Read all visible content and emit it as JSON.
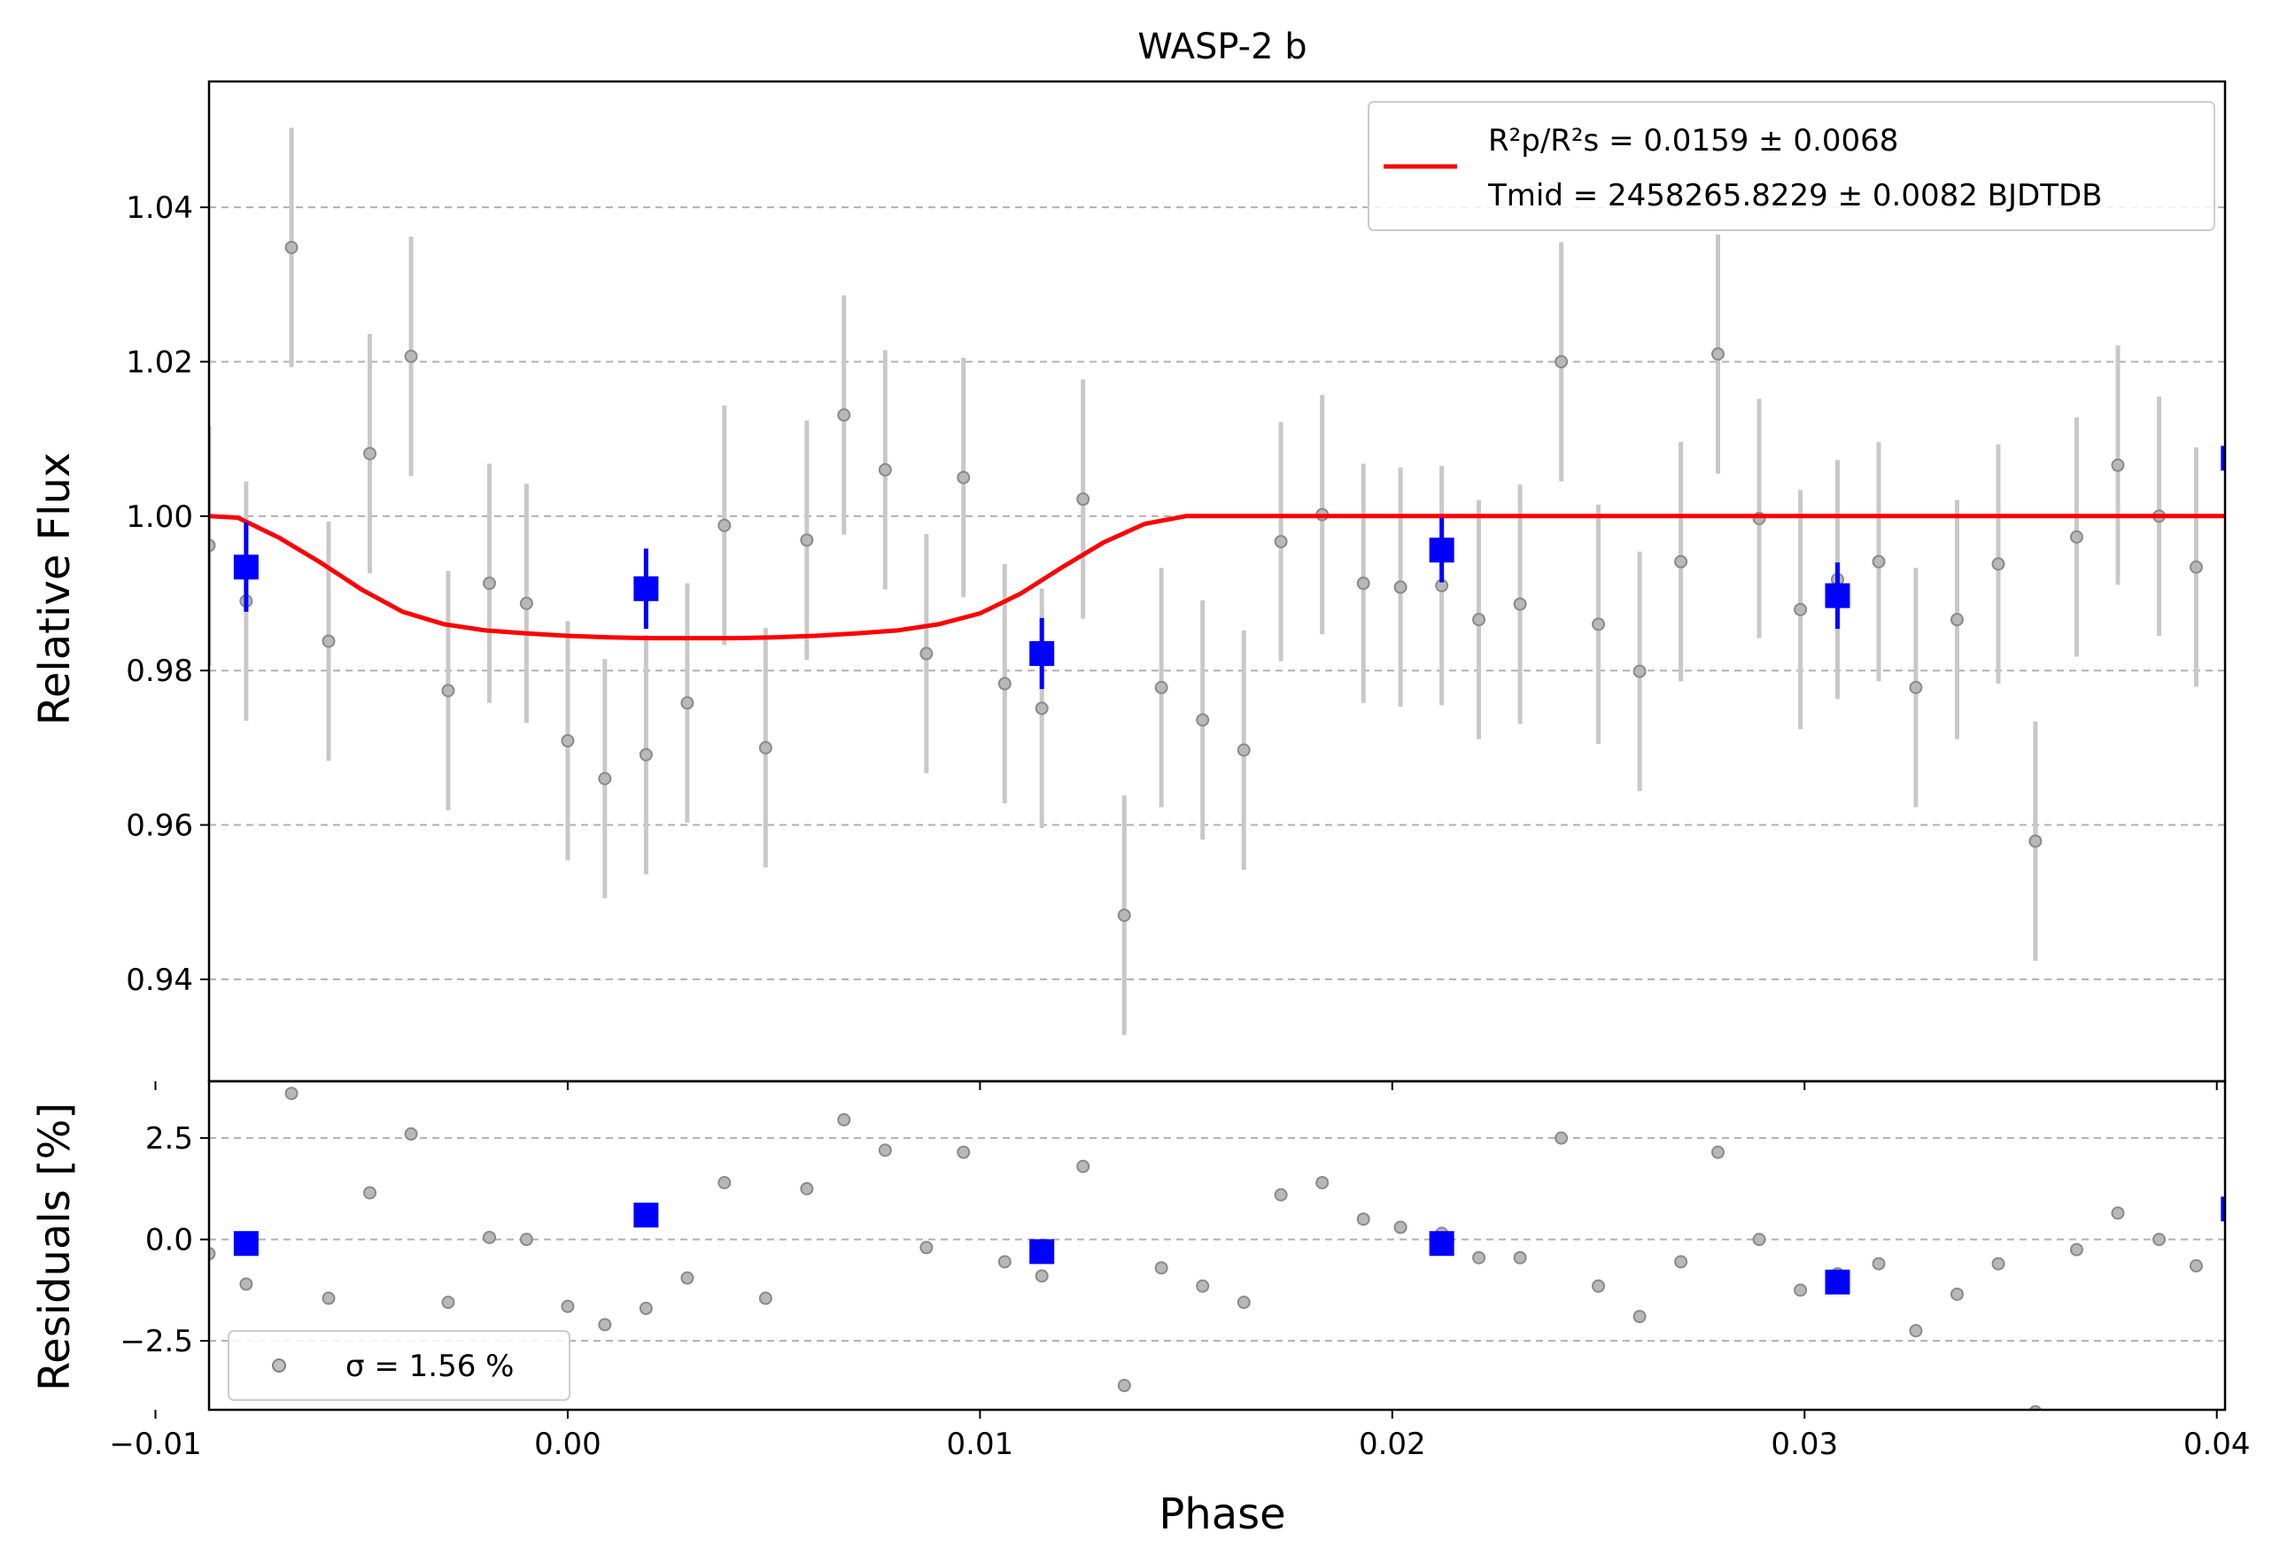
{
  "chart_data": [
    {
      "type": "scatter",
      "title": "WASP-2 b",
      "xlabel": "",
      "ylabel": "Relative Flux",
      "xlim": [
        -0.0087,
        0.0402
      ],
      "ylim": [
        0.9268,
        1.0563
      ],
      "yticks": [
        0.94,
        0.96,
        0.98,
        1.0,
        1.02,
        1.04
      ],
      "yticklabels": [
        "0.94",
        "0.96",
        "0.98",
        "1.00",
        "1.02",
        "1.04"
      ],
      "grid": "horizontal dashed",
      "legend_position": "top-right",
      "legend": {
        "line1": "R²p/R²s = 0.0159 ± 0.0068",
        "line2": "Tmid = 2458265.8229 ± 0.0082 BJDTDB"
      },
      "series": [
        {
          "kind": "raw",
          "color": "#808080",
          "x": [
            -0.0087,
            -0.0078,
            -0.0067,
            -0.0058,
            -0.0048,
            -0.0038,
            -0.0029,
            -0.0019,
            -0.001,
            0.0,
            0.0009,
            0.0019,
            0.0029,
            0.0038,
            0.0048,
            0.0058,
            0.0067,
            0.0077,
            0.0087,
            0.0096,
            0.0106,
            0.0115,
            0.0125,
            0.0135,
            0.0144,
            0.0154,
            0.0164,
            0.0173,
            0.0183,
            0.0193,
            0.0202,
            0.0212,
            0.0221,
            0.0231,
            0.0241,
            0.025,
            0.026,
            0.027,
            0.0279,
            0.0289,
            0.0299,
            0.0308,
            0.0318,
            0.0327,
            0.0337,
            0.0347,
            0.0356,
            0.0366,
            0.0376,
            0.0386,
            0.0395,
            0.0405
          ],
          "y": [
            0.9962,
            0.989,
            1.0348,
            0.9838,
            1.0081,
            1.0207,
            0.9774,
            0.9913,
            0.9887,
            0.9709,
            0.966,
            0.9691,
            0.9758,
            0.9988,
            0.97,
            0.9969,
            1.0131,
            1.006,
            0.9822,
            1.005,
            0.9783,
            0.9751,
            1.0022,
            0.9483,
            0.9778,
            0.9736,
            0.9697,
            0.9967,
            1.0002,
            0.9913,
            0.9908,
            0.991,
            0.9866,
            0.9886,
            1.02,
            0.986,
            0.9799,
            0.9941,
            1.021,
            0.9997,
            0.9879,
            0.9918,
            0.9941,
            0.9778,
            0.9866,
            0.9938,
            0.9579,
            0.9973,
            1.0066,
            1.0,
            0.9934,
            1.0098
          ],
          "yerr": 0.0155,
          "residuals": [
            -0.35,
            -1.1,
            3.6,
            -1.45,
            1.15,
            2.6,
            -1.55,
            0.05,
            0.0,
            -1.65,
            -2.1,
            -1.7,
            -0.95,
            1.4,
            -1.45,
            1.25,
            2.95,
            2.2,
            -0.2,
            2.15,
            -0.55,
            -0.9,
            1.8,
            -3.6,
            -0.7,
            -1.15,
            -1.55,
            1.1,
            1.4,
            0.5,
            0.3,
            0.15,
            -0.45,
            -0.45,
            2.5,
            -1.15,
            -1.9,
            -0.55,
            2.15,
            0.0,
            -1.25,
            -0.85,
            -0.6,
            -2.25,
            -1.35,
            -0.6,
            -4.25,
            -0.25,
            0.65,
            0.0,
            -0.65,
            1.0
          ]
        },
        {
          "kind": "binned",
          "color": "#0000ff",
          "x": [
            -0.0078,
            0.0019,
            0.0115,
            0.0212,
            0.0308,
            0.0404
          ],
          "y": [
            0.9934,
            0.9906,
            0.9822,
            0.9956,
            0.9897,
            1.0075
          ],
          "yerr": [
            0.0058,
            0.0052,
            0.0046,
            0.0042,
            0.0043,
            0.0022
          ],
          "residuals": [
            -0.1,
            0.6,
            -0.3,
            -0.1,
            -1.05,
            0.75
          ]
        },
        {
          "kind": "model",
          "color": "#ff0000",
          "x": [
            -0.0087,
            -0.008,
            -0.007,
            -0.006,
            -0.005,
            -0.004,
            -0.003,
            -0.002,
            -0.001,
            0.0,
            0.001,
            0.002,
            0.003,
            0.004,
            0.005,
            0.006,
            0.007,
            0.008,
            0.009,
            0.01,
            0.011,
            0.012,
            0.013,
            0.014,
            0.015,
            0.016,
            0.017,
            0.018,
            0.019,
            0.02,
            0.021,
            0.022,
            0.023,
            0.024,
            0.025,
            0.026,
            0.027,
            0.028,
            0.029,
            0.03,
            0.031,
            0.032,
            0.033,
            0.034,
            0.035,
            0.036,
            0.037,
            0.038,
            0.039,
            0.0402
          ],
          "y": [
            1.0,
            0.9998,
            0.9972,
            0.994,
            0.9905,
            0.9876,
            0.986,
            0.9852,
            0.9848,
            0.9845,
            0.9843,
            0.9842,
            0.9842,
            0.9842,
            0.9843,
            0.9845,
            0.9848,
            0.9852,
            0.986,
            0.9874,
            0.99,
            0.9934,
            0.9966,
            0.999,
            1.0,
            1.0,
            1.0,
            1.0,
            1.0,
            1.0,
            1.0,
            1.0,
            1.0,
            1.0,
            1.0,
            1.0,
            1.0,
            1.0,
            1.0,
            1.0,
            1.0,
            1.0,
            1.0,
            1.0,
            1.0,
            1.0,
            1.0,
            1.0,
            1.0,
            1.0
          ]
        }
      ]
    },
    {
      "type": "scatter",
      "title": "",
      "xlabel": "Phase",
      "ylabel": "Residuals [%]",
      "xlim": [
        -0.0087,
        0.0402
      ],
      "ylim": [
        -4.2,
        3.9
      ],
      "xticks": [
        -0.01,
        0.0,
        0.01,
        0.02,
        0.03,
        0.04
      ],
      "xticklabels": [
        "−0.01",
        "0.00",
        "0.01",
        "0.02",
        "0.03",
        "0.04"
      ],
      "yticks": [
        -2.5,
        0.0,
        2.5
      ],
      "yticklabels": [
        "−2.5",
        "0.0",
        "2.5"
      ],
      "grid": "horizontal dashed",
      "legend_position": "lower-left",
      "legend": {
        "label": "σ = 1.56 %"
      }
    }
  ]
}
